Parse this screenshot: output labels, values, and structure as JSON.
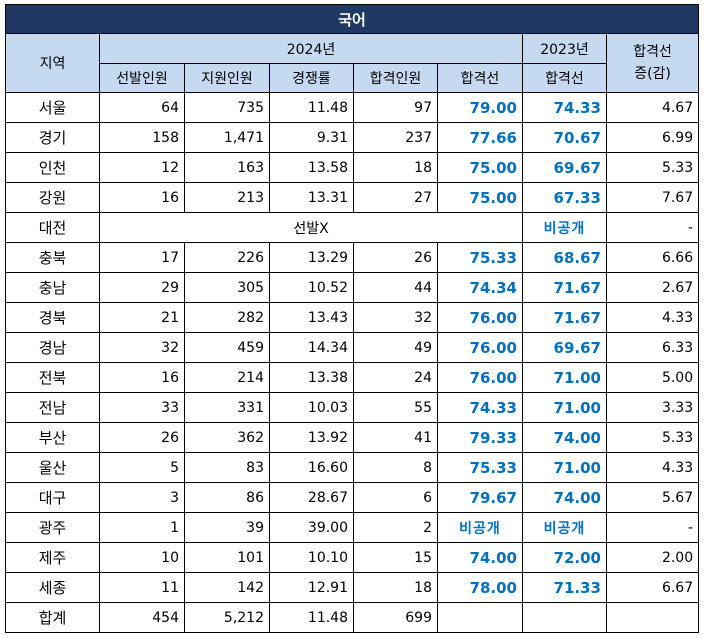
{
  "title": "국어",
  "headers": {
    "region": "지역",
    "year2024": "2024년",
    "year2023": "2023년",
    "change": "합격선\n증(감)",
    "sub2024": [
      "선발인원",
      "지원인원",
      "경쟁률",
      "합격인원",
      "합격선"
    ],
    "sub2023": "합격선"
  },
  "rows": [
    {
      "region": "서울",
      "selected": "64",
      "applicants": "735",
      "ratio": "11.48",
      "passed": "97",
      "cutoff2024": "79.00",
      "cutoff2023": "74.33",
      "change": "4.67"
    },
    {
      "region": "경기",
      "selected": "158",
      "applicants": "1,471",
      "ratio": "9.31",
      "passed": "237",
      "cutoff2024": "77.66",
      "cutoff2023": "70.67",
      "change": "6.99"
    },
    {
      "region": "인천",
      "selected": "12",
      "applicants": "163",
      "ratio": "13.58",
      "passed": "18",
      "cutoff2024": "75.00",
      "cutoff2023": "69.67",
      "change": "5.33"
    },
    {
      "region": "강원",
      "selected": "16",
      "applicants": "213",
      "ratio": "13.31",
      "passed": "27",
      "cutoff2024": "75.00",
      "cutoff2023": "67.33",
      "change": "7.67"
    },
    {
      "region": "대전",
      "no_selection": "선발X",
      "cutoff2023": "비공개",
      "change": "-"
    },
    {
      "region": "충북",
      "selected": "17",
      "applicants": "226",
      "ratio": "13.29",
      "passed": "26",
      "cutoff2024": "75.33",
      "cutoff2023": "68.67",
      "change": "6.66"
    },
    {
      "region": "충남",
      "selected": "29",
      "applicants": "305",
      "ratio": "10.52",
      "passed": "44",
      "cutoff2024": "74.34",
      "cutoff2023": "71.67",
      "change": "2.67"
    },
    {
      "region": "경북",
      "selected": "21",
      "applicants": "282",
      "ratio": "13.43",
      "passed": "32",
      "cutoff2024": "76.00",
      "cutoff2023": "71.67",
      "change": "4.33"
    },
    {
      "region": "경남",
      "selected": "32",
      "applicants": "459",
      "ratio": "14.34",
      "passed": "49",
      "cutoff2024": "76.00",
      "cutoff2023": "69.67",
      "change": "6.33"
    },
    {
      "region": "전북",
      "selected": "16",
      "applicants": "214",
      "ratio": "13.38",
      "passed": "24",
      "cutoff2024": "76.00",
      "cutoff2023": "71.00",
      "change": "5.00"
    },
    {
      "region": "전남",
      "selected": "33",
      "applicants": "331",
      "ratio": "10.03",
      "passed": "55",
      "cutoff2024": "74.33",
      "cutoff2023": "71.00",
      "change": "3.33"
    },
    {
      "region": "부산",
      "selected": "26",
      "applicants": "362",
      "ratio": "13.92",
      "passed": "41",
      "cutoff2024": "79.33",
      "cutoff2023": "74.00",
      "change": "5.33"
    },
    {
      "region": "울산",
      "selected": "5",
      "applicants": "83",
      "ratio": "16.60",
      "passed": "8",
      "cutoff2024": "75.33",
      "cutoff2023": "71.00",
      "change": "4.33"
    },
    {
      "region": "대구",
      "selected": "3",
      "applicants": "86",
      "ratio": "28.67",
      "passed": "6",
      "cutoff2024": "79.67",
      "cutoff2023": "74.00",
      "change": "5.67"
    },
    {
      "region": "광주",
      "selected": "1",
      "applicants": "39",
      "ratio": "39.00",
      "passed": "2",
      "cutoff2024": "비공개",
      "cutoff2023": "비공개",
      "change": "-"
    },
    {
      "region": "제주",
      "selected": "10",
      "applicants": "101",
      "ratio": "10.10",
      "passed": "15",
      "cutoff2024": "74.00",
      "cutoff2023": "72.00",
      "change": "2.00"
    },
    {
      "region": "세종",
      "selected": "11",
      "applicants": "142",
      "ratio": "12.91",
      "passed": "18",
      "cutoff2024": "78.00",
      "cutoff2023": "71.33",
      "change": "6.67"
    },
    {
      "region": "합계",
      "selected": "454",
      "applicants": "5,212",
      "ratio": "11.48",
      "passed": "699",
      "cutoff2024": "",
      "cutoff2023": "",
      "change": ""
    }
  ]
}
